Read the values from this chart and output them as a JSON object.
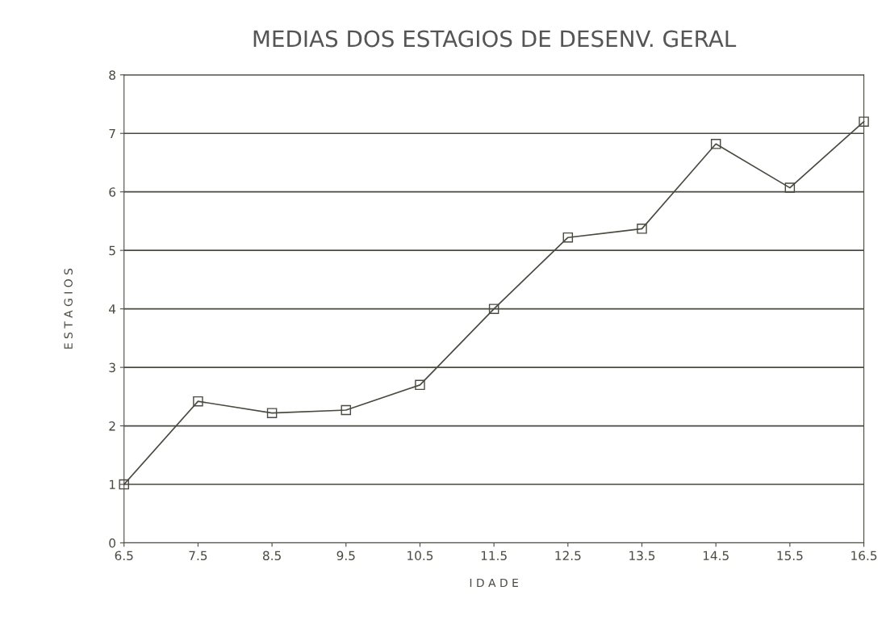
{
  "chart_data": {
    "type": "line",
    "title": "MEDIAS DOS ESTAGIOS DE DESENV. GERAL",
    "xlabel": "I D A D E",
    "ylabel": "E S T A G I O S",
    "x": [
      6.5,
      7.5,
      8.5,
      9.5,
      10.5,
      11.5,
      12.5,
      13.5,
      14.5,
      15.5,
      16.5
    ],
    "series": [
      {
        "color": "#4a4a40",
        "values": [
          1.0,
          2.42,
          2.22,
          2.27,
          2.7,
          4.0,
          5.22,
          5.37,
          6.82,
          6.07,
          7.2
        ]
      }
    ],
    "xlim": [
      6.5,
      16.5
    ],
    "xticks": [
      6.5,
      7.5,
      8.5,
      9.5,
      10.5,
      11.5,
      12.5,
      13.5,
      14.5,
      15.5,
      16.5
    ],
    "ylim": [
      0,
      8
    ],
    "yticks": [
      0,
      1,
      2,
      3,
      4,
      5,
      6,
      7,
      8
    ],
    "grid": "y",
    "marker": "square",
    "line_style": "solid",
    "legend": false
  }
}
